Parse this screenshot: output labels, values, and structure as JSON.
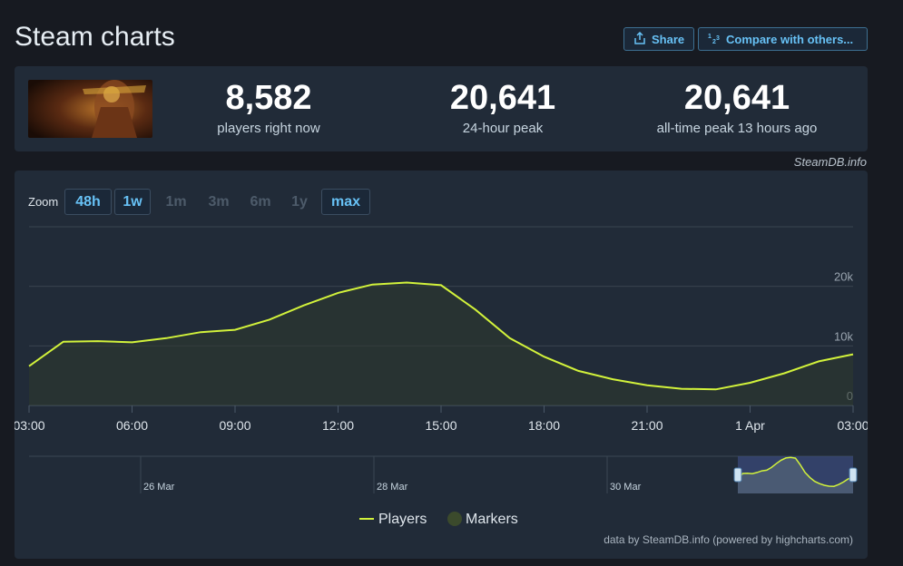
{
  "page": {
    "title": "Steam charts"
  },
  "actions": {
    "share_label": "Share",
    "compare_label": "Compare with others..."
  },
  "stats": {
    "now_value": "8,582",
    "now_label": "players right now",
    "peak24_value": "20,641",
    "peak24_label": "24-hour peak",
    "alltime_value": "20,641",
    "alltime_label": "all-time peak 13 hours ago"
  },
  "watermark": "SteamDB.info",
  "zoom": {
    "label": "Zoom",
    "options": [
      "48h",
      "1w",
      "1m",
      "3m",
      "6m",
      "1y",
      "max"
    ],
    "active": [
      "48h",
      "1w",
      "max"
    ]
  },
  "credit": "data by SteamDB.info (powered by highcharts.com)",
  "colors": {
    "line": "#d2f23b",
    "navigator_bg": "#3a4a7a",
    "marker": "#3b4a2c"
  },
  "chart_data": {
    "type": "area",
    "series": [
      {
        "name": "Players",
        "x": [
          "03:00",
          "04:00",
          "05:00",
          "06:00",
          "07:00",
          "08:00",
          "09:00",
          "10:00",
          "11:00",
          "12:00",
          "13:00",
          "14:00",
          "15:00",
          "16:00",
          "17:00",
          "18:00",
          "19:00",
          "20:00",
          "21:00",
          "22:00",
          "23:00",
          "1 Apr 00:00",
          "01:00",
          "02:00",
          "03:00"
        ],
        "values": [
          6600,
          10700,
          10800,
          10600,
          11300,
          12300,
          12700,
          14400,
          16800,
          18900,
          20300,
          20641,
          20200,
          16100,
          11300,
          8200,
          5800,
          4400,
          3400,
          2800,
          2700,
          3800,
          5400,
          7400,
          8582
        ]
      }
    ],
    "legend": [
      "Players",
      "Markers"
    ],
    "x_tick_labels": [
      "03:00",
      "06:00",
      "09:00",
      "12:00",
      "15:00",
      "18:00",
      "21:00",
      "1 Apr",
      "03:00"
    ],
    "y_tick_labels": [
      "0",
      "10k",
      "20k"
    ],
    "ylim": [
      0,
      30000
    ],
    "navigator_labels": [
      "26 Mar",
      "28 Mar",
      "30 Mar"
    ],
    "grid": true,
    "legend_position": "bottom"
  }
}
